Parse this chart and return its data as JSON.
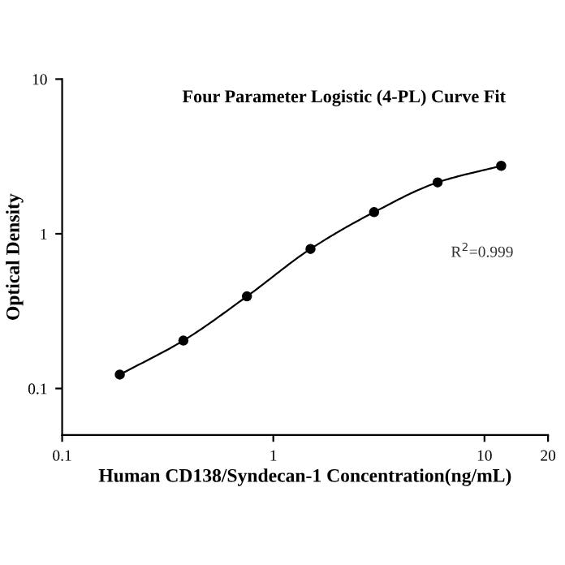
{
  "chart_data": {
    "type": "line",
    "title": "Four Parameter Logistic (4-PL) Curve Fit",
    "xlabel": "Human CD138/Syndecan-1 Concentration(ng/mL)",
    "ylabel": "Optical Density",
    "x": [
      0.1875,
      0.375,
      0.75,
      1.5,
      3,
      6,
      12
    ],
    "series": [
      {
        "color": "#000000",
        "values": [
          0.123,
          0.204,
          0.394,
          0.798,
          1.38,
          2.15,
          2.75
        ]
      }
    ],
    "marker": "circle",
    "line_style": "solid",
    "log": "xy",
    "xlim": [
      0.1,
      20
    ],
    "xticks": [
      0.1,
      1,
      10,
      20
    ],
    "ylim": [
      0.05,
      10
    ],
    "yticks": [
      0.1,
      1,
      10
    ],
    "annotations": [
      "R$^{2}$=0.999"
    ]
  }
}
